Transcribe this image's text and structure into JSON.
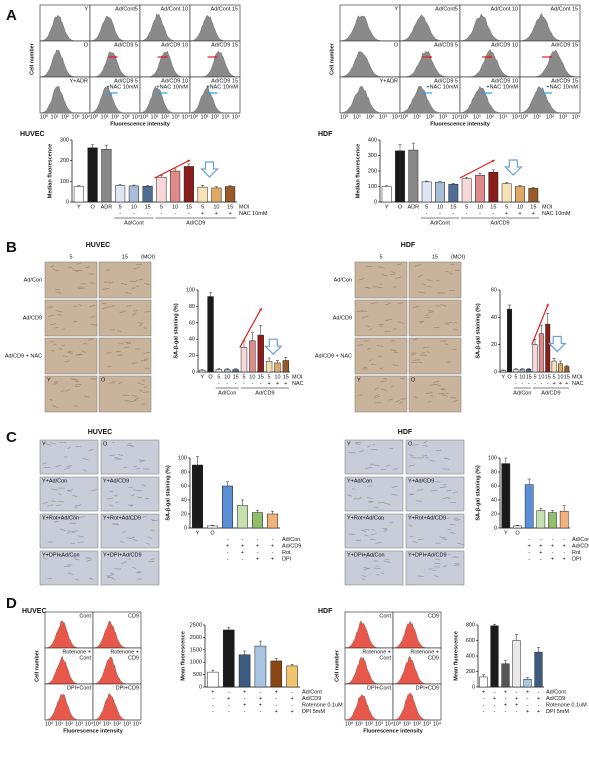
{
  "panels": {
    "A": {
      "label": "A",
      "huvec": {
        "title": "HUVEC",
        "hist": {
          "ylabel": "Cell number",
          "xlabel": "Fluorescence intensity",
          "xticks": [
            "10⁰",
            "10¹",
            "10²",
            "10³",
            "10⁴"
          ],
          "cells": [
            [
              [
                "Y"
              ],
              [
                "Ad/Cont5"
              ],
              [
                "Ad/Cont 10"
              ],
              [
                "Ad/Cont 15"
              ]
            ],
            [
              [
                "O"
              ],
              [
                "Ad/CD9 5"
              ],
              [
                "Ad/CD9 10"
              ],
              [
                "Ad/CD9 15"
              ]
            ],
            [
              [
                "Y+ADR"
              ],
              [
                "Ad/CD9 5",
                "+NAC 10mM"
              ],
              [
                "Ad/CD9 10",
                "+NAC 10mM"
              ],
              [
                "Ad/CD9 15",
                "+NAC 10mM"
              ]
            ]
          ]
        },
        "bar": {
          "ylabel": "Median fluorescence",
          "ylim": [
            0,
            300
          ],
          "yticks": [
            0,
            100,
            200,
            300
          ],
          "categories": [
            "Y",
            "O",
            "ADR",
            "5",
            "10",
            "15",
            "5",
            "10",
            "15",
            "5",
            "10",
            "15"
          ],
          "extra_label": "MOI",
          "values": [
            75,
            262,
            255,
            80,
            78,
            76,
            120,
            150,
            172,
            72,
            68,
            75
          ],
          "errors": [
            5,
            15,
            20,
            4,
            4,
            4,
            8,
            10,
            12,
            8,
            6,
            5
          ],
          "colors": [
            "#ffffff",
            "#1a1a1a",
            "#888888",
            "#dde6f2",
            "#a9bdd8",
            "#4f6d94",
            "#f8d8d8",
            "#e08a8a",
            "#8b1c1c",
            "#f5e3b5",
            "#e0a860",
            "#9a5a28"
          ],
          "rows": [
            {
              "label": "NAC 10mM",
              "cells": [
                null,
                null,
                null,
                "-",
                "-",
                "-",
                "-",
                "-",
                "-",
                "+",
                "+",
                "+"
              ]
            }
          ],
          "groups": [
            "Ad/Cont",
            "Ad/CD9"
          ]
        }
      },
      "hdf": {
        "title": "HDF",
        "hist": {
          "ylabel": "Cell number",
          "xlabel": "Fluorescence intensity",
          "xticks": [
            "10⁰",
            "10¹",
            "10²",
            "10³",
            "10⁴"
          ],
          "cells": [
            [
              [
                "Y"
              ],
              [
                "Ad/Cont5"
              ],
              [
                "Ad/Cont 10"
              ],
              [
                "Ad/Cont 15"
              ]
            ],
            [
              [
                "O"
              ],
              [
                "Ad/CD9 5"
              ],
              [
                "Ad/CD9 10"
              ],
              [
                "Ad/CD9 15"
              ]
            ],
            [
              [
                "Y+ADR"
              ],
              [
                "Ad/CD9 5",
                "+NAC 10mM"
              ],
              [
                "Ad/CD9 10",
                "+NAC 10mM"
              ],
              [
                "Ad/CD9 15",
                "+NAC 10mM"
              ]
            ]
          ]
        },
        "bar": {
          "ylabel": "Median fluorescence",
          "ylim": [
            0,
            400
          ],
          "yticks": [
            0,
            100,
            200,
            300,
            400
          ],
          "categories": [
            "Y",
            "O",
            "ADR",
            "5",
            "10",
            "15",
            "5",
            "10",
            "15",
            "5",
            "10",
            "15"
          ],
          "extra_label": "MOI",
          "values": [
            100,
            330,
            335,
            130,
            128,
            115,
            150,
            172,
            192,
            118,
            100,
            88
          ],
          "errors": [
            5,
            40,
            45,
            5,
            5,
            5,
            10,
            12,
            15,
            8,
            8,
            6
          ],
          "colors": [
            "#ffffff",
            "#1a1a1a",
            "#888888",
            "#dde6f2",
            "#a9bdd8",
            "#4f6d94",
            "#f8d8d8",
            "#e08a8a",
            "#8b1c1c",
            "#f5e3b5",
            "#e0a860",
            "#9a5a28"
          ],
          "rows": [
            {
              "label": "NAC 10mM",
              "cells": [
                null,
                null,
                null,
                "-",
                "-",
                "-",
                "-",
                "-",
                "-",
                "+",
                "+",
                "+"
              ]
            }
          ],
          "groups": [
            "Ad/Cont",
            "Ad/CD9"
          ]
        }
      }
    },
    "B": {
      "label": "B",
      "huvec": {
        "title": "HUVEC",
        "micro": {
          "col_labels": [
            "5",
            "15"
          ],
          "col_unit": "(MOI)",
          "row_labels": [
            "Ad/Con",
            "Ad/CD9",
            "Ad/CD9 + NAC"
          ],
          "cells": [
            [
              null,
              null
            ],
            [
              null,
              null
            ],
            [
              null,
              null
            ],
            [
              "Y",
              "O"
            ]
          ]
        },
        "bar": {
          "ylabel": "SA-β-gal staining (%)",
          "ylim": [
            0,
            100
          ],
          "yticks": [
            0,
            20,
            40,
            60,
            80,
            100
          ],
          "categories": [
            "Y",
            "O",
            "5",
            "10",
            "15",
            "5",
            "10",
            "15",
            "5",
            "10",
            "15"
          ],
          "extra_label": "MOI",
          "values": [
            2,
            92,
            3,
            3,
            3,
            30,
            38,
            45,
            13,
            11,
            14
          ],
          "errors": [
            1,
            5,
            1,
            1,
            1,
            8,
            10,
            12,
            4,
            3,
            4
          ],
          "colors": [
            "#ffffff",
            "#1a1a1a",
            "#dde6f2",
            "#a9bdd8",
            "#4f6d94",
            "#f8d8d8",
            "#e08a8a",
            "#8b1c1c",
            "#f5e3b5",
            "#e0a860",
            "#9a5a28"
          ],
          "rows": [
            {
              "label": "NAC",
              "cells": [
                null,
                null,
                "-",
                "-",
                "-",
                "-",
                "-",
                "-",
                "+",
                "+",
                "+"
              ]
            }
          ],
          "groups": [
            "Ad/Con",
            "Ad/CD9"
          ]
        }
      },
      "hdf": {
        "title": "HDF",
        "micro": {
          "col_labels": [
            "5",
            "15"
          ],
          "col_unit": "(MOI)",
          "row_labels": [
            "Ad/Con",
            "Ad/CD9",
            "Ad/CD9 + NAC"
          ],
          "cells": [
            [
              null,
              null
            ],
            [
              null,
              null
            ],
            [
              null,
              null
            ],
            [
              "Y",
              "O"
            ]
          ]
        },
        "bar": {
          "ylabel": "SA-β-gal staining (%)",
          "ylim": [
            0,
            60
          ],
          "yticks": [
            0,
            20,
            40,
            60
          ],
          "categories": [
            "Y",
            "O",
            "5",
            "10",
            "15",
            "5",
            "10",
            "15",
            "5",
            "10",
            "15"
          ],
          "extra_label": "MOI",
          "values": [
            1,
            46,
            2,
            2,
            2,
            20,
            28,
            35,
            8,
            6,
            4
          ],
          "errors": [
            0.5,
            3,
            0.5,
            0.5,
            0.5,
            4,
            6,
            8,
            2,
            2,
            1
          ],
          "colors": [
            "#ffffff",
            "#1a1a1a",
            "#dde6f2",
            "#a9bdd8",
            "#4f6d94",
            "#f8d8d8",
            "#e08a8a",
            "#8b1c1c",
            "#f5e3b5",
            "#e0a860",
            "#9a5a28"
          ],
          "rows": [
            {
              "label": "NAC",
              "cells": [
                null,
                null,
                "-",
                "-",
                "-",
                "-",
                "-",
                "-",
                "+",
                "+",
                "+"
              ]
            }
          ],
          "groups": [
            "Ad/Con",
            "Ad/CD9"
          ]
        }
      }
    },
    "C": {
      "label": "C",
      "huvec": {
        "title": "HUVEC",
        "micro": {
          "cells": [
            [
              "Y",
              "O"
            ],
            [
              "Y+Ad/Con",
              "Y+Ad/CD9"
            ],
            [
              "Y+Rot+Ad/Con",
              "Y+Rot+Ad/CD9"
            ],
            [
              "Y+DPI+Ad/Con",
              "Y+DPI+Ad/CD9"
            ]
          ]
        },
        "bar": {
          "ylabel": "SA-β-gal staining (%)",
          "ylim": [
            0,
            100
          ],
          "yticks": [
            0,
            20,
            40,
            60,
            80,
            100
          ],
          "categories": [
            "Y",
            "O",
            null,
            null,
            null,
            null
          ],
          "values": [
            90,
            3,
            60,
            32,
            22,
            20
          ],
          "errors": [
            12,
            1,
            6,
            8,
            3,
            4
          ],
          "colors": [
            "#1a1a1a",
            "#ffffff",
            "#5b8fd6",
            "#c7e0b0",
            "#8fbf6a",
            "#f2b27a"
          ],
          "rows": [
            {
              "label": "Ad/Con",
              "cells": [
                null,
                null,
                "-",
                "-",
                "-",
                "-"
              ]
            },
            {
              "label": "Ad/CD9",
              "cells": [
                null,
                null,
                "+",
                "+",
                "+",
                "+"
              ]
            },
            {
              "label": "Rot",
              "cells": [
                null,
                null,
                "-",
                "+",
                "-",
                "-"
              ]
            },
            {
              "label": "DPI",
              "cells": [
                null,
                null,
                "-",
                "-",
                "+",
                "+"
              ]
            }
          ]
        }
      },
      "hdf": {
        "title": "HDF",
        "micro": {
          "cells": [
            [
              "Y",
              "O"
            ],
            [
              "Y+Ad/Con",
              "Y+Ad/CD9"
            ],
            [
              "Y+Rot+Ad/Con",
              "Y+Rot+Ad/CD9"
            ],
            [
              "Y+DPI+Ad/Con",
              "Y+DPI+Ad/CD9"
            ]
          ]
        },
        "bar": {
          "ylabel": "SA-β-gal staining (%)",
          "ylim": [
            0,
            100
          ],
          "yticks": [
            0,
            20,
            40,
            60,
            80,
            100
          ],
          "categories": [
            "Y",
            "O",
            null,
            null,
            null,
            null
          ],
          "values": [
            92,
            3,
            62,
            25,
            22,
            24
          ],
          "errors": [
            8,
            1,
            8,
            3,
            3,
            8
          ],
          "colors": [
            "#1a1a1a",
            "#ffffff",
            "#5b8fd6",
            "#c7e0b0",
            "#8fbf6a",
            "#f2b27a"
          ],
          "rows": [
            {
              "label": "Ad/Con",
              "cells": [
                null,
                null,
                "-",
                "-",
                "-",
                "-"
              ]
            },
            {
              "label": "Ad/CD9",
              "cells": [
                null,
                null,
                "+",
                "+",
                "+",
                "+"
              ]
            },
            {
              "label": "Rot",
              "cells": [
                null,
                null,
                "-",
                "+",
                "-",
                "-"
              ]
            },
            {
              "label": "DPI",
              "cells": [
                null,
                null,
                "-",
                "-",
                "+",
                "+"
              ]
            }
          ]
        }
      }
    },
    "D": {
      "label": "D",
      "huvec": {
        "title": "HUVEC",
        "hist": {
          "ylabel": "Cell number",
          "xlabel": "Fluorescence intensity",
          "xticks": [
            "10⁰",
            "10¹",
            "10²",
            "10³",
            "10⁴"
          ],
          "cells": [
            [
              [
                "Cont"
              ],
              [
                "CD9"
              ]
            ],
            [
              [
                "Rotenone +",
                "Cont"
              ],
              [
                "Rotenone +",
                "CD9"
              ]
            ],
            [
              [
                "DPI+Cont"
              ],
              [
                "DPI+CD9"
              ]
            ]
          ]
        },
        "bar": {
          "ylabel": "Mean fluorescence",
          "ylim": [
            0,
            2500
          ],
          "yticks": [
            0,
            500,
            1000,
            1500,
            2000,
            2500
          ],
          "values": [
            600,
            2300,
            1300,
            1650,
            1050,
            850
          ],
          "errors": [
            80,
            100,
            150,
            200,
            100,
            60
          ],
          "colors": [
            "#ffffff",
            "#1a1a1a",
            "#3d5a80",
            "#a8c4e0",
            "#8b4513",
            "#f2c46d"
          ],
          "rows": [
            {
              "label": "Ad/Cont",
              "cells": [
                "+",
                "-",
                "+",
                "-",
                "+",
                "-"
              ]
            },
            {
              "label": "Ad/CD9",
              "cells": [
                "-",
                "+",
                "-",
                "+",
                "-",
                "+"
              ]
            },
            {
              "label": "Rotenone 0.1uM",
              "cells": [
                "-",
                "-",
                "+",
                "+",
                "-",
                "-"
              ]
            },
            {
              "label": "DPI 5mM",
              "cells": [
                "-",
                "-",
                "-",
                "-",
                "+",
                "+"
              ]
            }
          ]
        }
      },
      "hdf": {
        "title": "HDF",
        "hist": {
          "ylabel": "Cell number",
          "xlabel": "Fluorescence intensity",
          "xticks": [
            "10⁰",
            "10¹",
            "10²",
            "10³",
            "10⁴"
          ],
          "cells": [
            [
              [
                "Cont"
              ],
              [
                "CD9"
              ]
            ],
            [
              [
                "Rotenone +",
                "Cont"
              ],
              [
                "Rotenone +",
                "CD9"
              ]
            ],
            [
              [
                "DPI+Cont"
              ],
              [
                "DPI+CD9"
              ]
            ]
          ]
        },
        "bar": {
          "ylabel": "Mean fluorescence",
          "ylim": [
            0,
            800
          ],
          "yticks": [
            0,
            200,
            400,
            600,
            800
          ],
          "values": [
            130,
            790,
            300,
            600,
            100,
            450
          ],
          "errors": [
            30,
            20,
            40,
            80,
            20,
            60
          ],
          "colors": [
            "#ffffff",
            "#1a1a1a",
            "#555555",
            "#e8e8e8",
            "#a8c8e8",
            "#3d5a80"
          ],
          "rows": [
            {
              "label": "Ad/Cont",
              "cells": [
                "+",
                "-",
                "+",
                "-",
                "+",
                "-"
              ]
            },
            {
              "label": "Ad/CD9",
              "cells": [
                "-",
                "+",
                "-",
                "+",
                "-",
                "+"
              ]
            },
            {
              "label": "Rotenone 0.1uM",
              "cells": [
                "-",
                "-",
                "+",
                "+",
                "-",
                "-"
              ]
            },
            {
              "label": "DPI 5mM",
              "cells": [
                "-",
                "-",
                "-",
                "-",
                "+",
                "+"
              ]
            }
          ]
        }
      }
    }
  }
}
